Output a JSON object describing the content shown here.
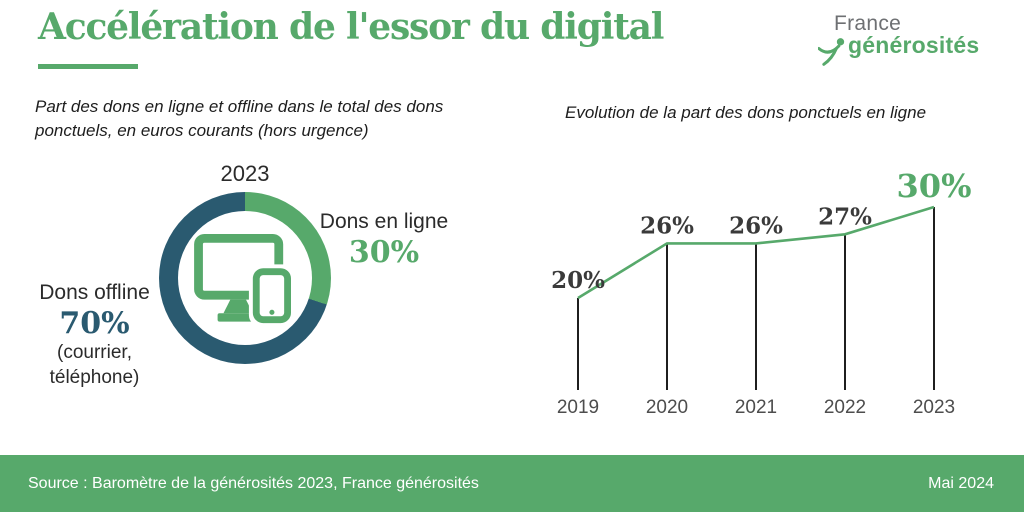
{
  "header": {
    "title": "Accélération de l'essor du digital",
    "logo": {
      "line1": "France",
      "line2": "générosités"
    }
  },
  "left_panel": {
    "subtitle": "Part des dons en ligne et offline dans le total des dons ponctuels, en euros courants (hors urgence)",
    "year_label": "2023",
    "online_label": "Dons en ligne",
    "online_value": "30%",
    "offline_label": "Dons offline",
    "offline_value": "70%",
    "offline_note_line1": "(courrier,",
    "offline_note_line2": "téléphone)"
  },
  "right_panel": {
    "subtitle": "Evolution de la part des dons ponctuels en ligne"
  },
  "footer": {
    "source": "Source : Baromètre de la générosités 2023, France générosités",
    "date": "Mai 2024"
  },
  "colors": {
    "green": "#57A96B",
    "teal": "#2A5A70",
    "text_dark": "#2B2B2B",
    "year_gray": "#4D4D4D",
    "stem": "#1F1F1F",
    "logo_gray": "#6E7073",
    "footer_text": "#FFFFFF"
  },
  "chart_data": [
    {
      "type": "pie",
      "donut": true,
      "title": "2023",
      "center_icon": "computer-and-smartphone",
      "slices": [
        {
          "label": "Dons en ligne",
          "value": 30,
          "color": "#57A96B"
        },
        {
          "label": "Dons offline (courrier, téléphone)",
          "value": 70,
          "color": "#2A5A70"
        }
      ]
    },
    {
      "type": "line",
      "title": "Evolution de la part des dons ponctuels en ligne",
      "categories": [
        "2019",
        "2020",
        "2021",
        "2022",
        "2023"
      ],
      "values": [
        20,
        26,
        26,
        27,
        30
      ],
      "unit": "%",
      "ylim": [
        14,
        34
      ],
      "grid": false,
      "legend": "none",
      "highlight_last": true
    }
  ]
}
